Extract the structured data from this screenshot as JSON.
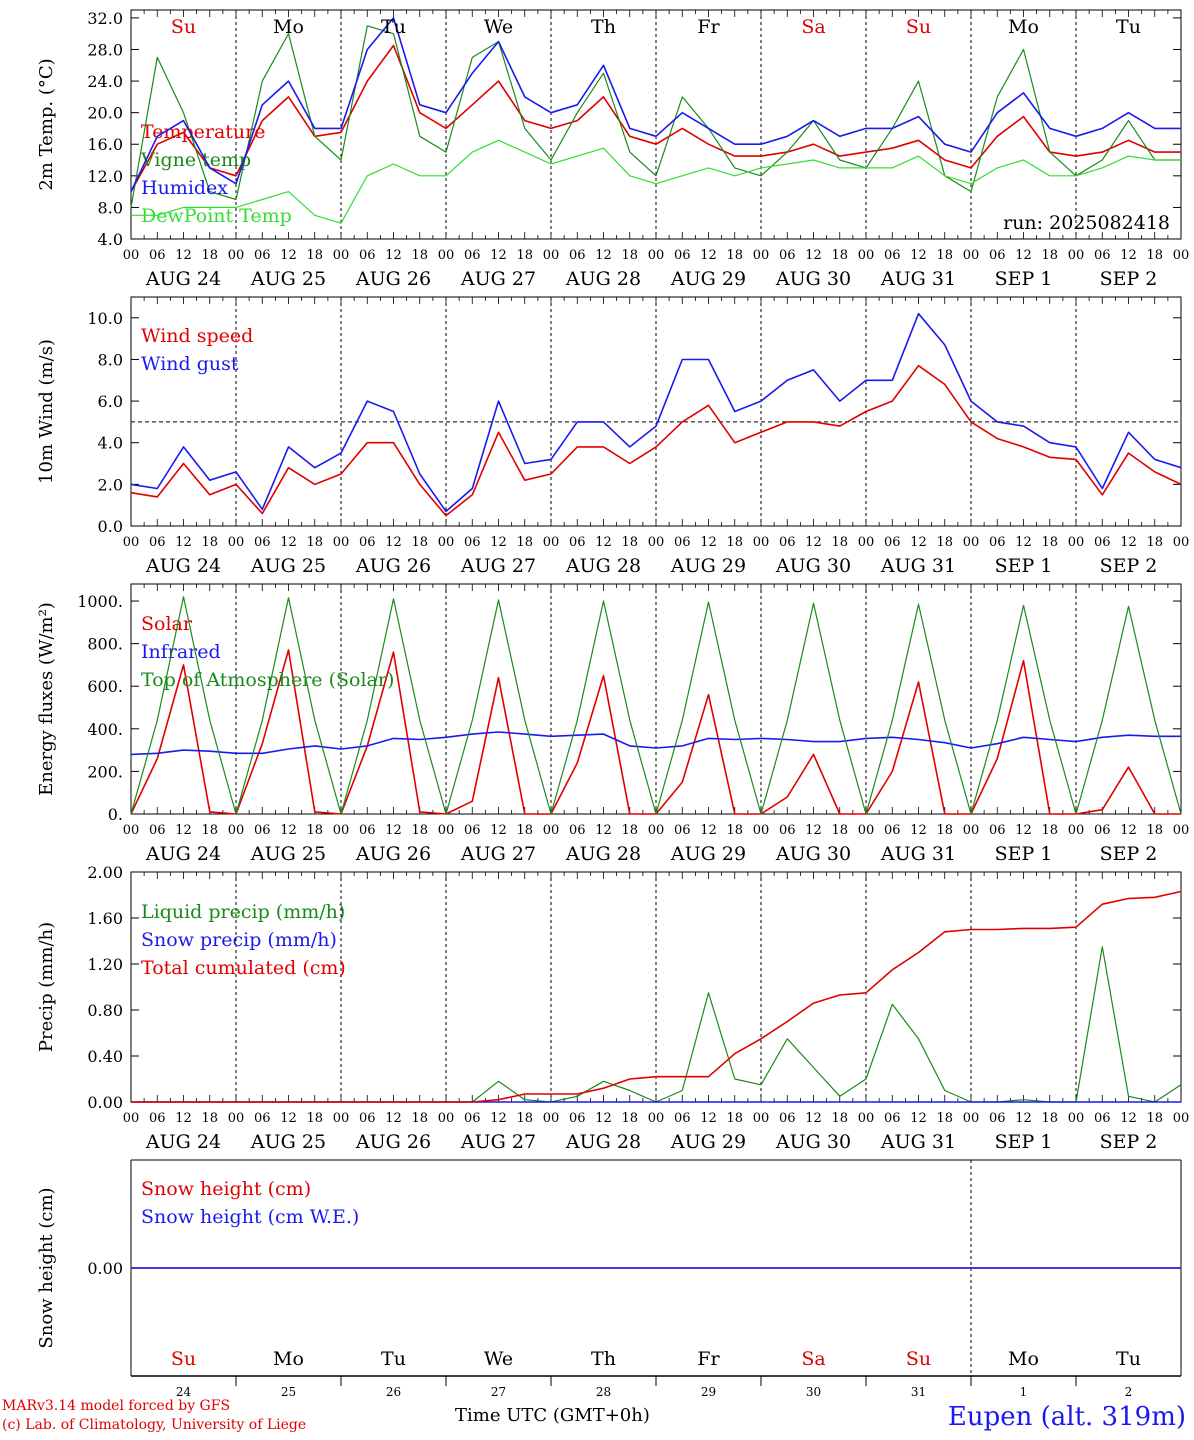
{
  "footer": {
    "model": "MARv3.14 model forced by GFS",
    "credit": "(c) Lab. of Climatology, University of Liege",
    "time_label": "Time UTC (GMT+0h)",
    "location": "Eupen (alt. 319m)"
  },
  "days": [
    {
      "weekday": "Su",
      "date": "AUG 24",
      "num": "24",
      "weekend": true
    },
    {
      "weekday": "Mo",
      "date": "AUG 25",
      "num": "25",
      "weekend": false
    },
    {
      "weekday": "Tu",
      "date": "AUG 26",
      "num": "26",
      "weekend": false
    },
    {
      "weekday": "We",
      "date": "AUG 27",
      "num": "27",
      "weekend": false
    },
    {
      "weekday": "Th",
      "date": "AUG 28",
      "num": "28",
      "weekend": false
    },
    {
      "weekday": "Fr",
      "date": "AUG 29",
      "num": "29",
      "weekend": false
    },
    {
      "weekday": "Sa",
      "date": "AUG 30",
      "num": "30",
      "weekend": true
    },
    {
      "weekday": "Su",
      "date": "AUG 31",
      "num": "31",
      "weekend": true
    },
    {
      "weekday": "Mo",
      "date": "SEP  1",
      "num": "1",
      "weekend": false
    },
    {
      "weekday": "Tu",
      "date": "SEP  2",
      "num": "2",
      "weekend": false
    }
  ],
  "hour_ticks": [
    "00",
    "06",
    "12",
    "18"
  ],
  "colors": {
    "red": "#e00000",
    "green": "#1a8a1a",
    "blue": "#1a1aee",
    "lime": "#33dd33",
    "black": "#000000"
  },
  "chart_data": [
    {
      "type": "line",
      "ylabel": "2m Temp. (°C)",
      "ylim": [
        4,
        33
      ],
      "yticks": [
        4,
        8,
        12,
        16,
        20,
        24,
        28,
        32
      ],
      "ytick_labels": [
        "4.0",
        "8.0",
        "12.0",
        "16.0",
        "20.0",
        "24.0",
        "28.0",
        "32.0"
      ],
      "annotation": "run: 2025082418",
      "x_hours": [
        0,
        6,
        12,
        18,
        24,
        30,
        36,
        42,
        48,
        54,
        60,
        66,
        72,
        78,
        84,
        90,
        96,
        102,
        108,
        114,
        120,
        126,
        132,
        138,
        144,
        150,
        156,
        162,
        168,
        174,
        180,
        186,
        192,
        198,
        204,
        210,
        216,
        222,
        228,
        234,
        240
      ],
      "series": [
        {
          "name": "Temperature",
          "color": "red",
          "values": [
            10,
            16,
            17.5,
            13,
            12,
            19,
            22,
            17,
            17.5,
            24,
            28.5,
            20,
            18,
            21,
            24,
            19,
            18,
            19,
            22,
            17,
            16,
            18,
            16,
            14.5,
            14.5,
            15,
            16,
            14.5,
            15,
            15.5,
            16.5,
            14,
            13,
            17,
            19.5,
            15,
            14.5,
            15,
            16.5,
            15,
            15
          ]
        },
        {
          "name": "Vigne temp",
          "color": "green",
          "values": [
            8,
            27,
            20,
            10,
            9,
            24,
            30,
            17,
            14,
            31,
            30,
            17,
            15,
            27,
            29,
            18,
            14,
            20,
            25,
            15,
            12,
            22,
            18,
            13,
            12,
            15,
            19,
            14,
            13,
            18,
            24,
            12,
            10,
            22,
            28,
            15,
            12,
            14,
            19,
            14,
            14
          ]
        },
        {
          "name": "Humidex",
          "color": "blue",
          "values": [
            10,
            17,
            19,
            13,
            11,
            21,
            24,
            18,
            18,
            28,
            32,
            21,
            20,
            25,
            29,
            22,
            20,
            21,
            26,
            18,
            17,
            20,
            18,
            16,
            16,
            17,
            19,
            17,
            18,
            18,
            19.5,
            16,
            15,
            20,
            22.5,
            18,
            17,
            18,
            20,
            18,
            18
          ]
        },
        {
          "name": "DewPoint Temp",
          "color": "lime",
          "values": [
            7,
            7,
            8,
            8,
            8,
            9,
            10,
            7,
            6,
            12,
            13.5,
            12,
            12,
            15,
            16.5,
            15,
            13.5,
            14.5,
            15.5,
            12,
            11,
            12,
            13,
            12,
            13,
            13.5,
            14,
            13,
            13,
            13,
            14.5,
            12,
            11,
            13,
            14,
            12,
            12,
            13,
            14.5,
            14,
            14
          ]
        }
      ]
    },
    {
      "type": "line",
      "ylabel": "10m Wind (m/s)",
      "ylim": [
        0,
        11
      ],
      "yticks": [
        0,
        2,
        4,
        6,
        8,
        10
      ],
      "ytick_labels": [
        "0.0",
        "2.0",
        "4.0",
        "6.0",
        "8.0",
        "10.0"
      ],
      "reference_line": 5,
      "x_hours": [
        0,
        6,
        12,
        18,
        24,
        30,
        36,
        42,
        48,
        54,
        60,
        66,
        72,
        78,
        84,
        90,
        96,
        102,
        108,
        114,
        120,
        126,
        132,
        138,
        144,
        150,
        156,
        162,
        168,
        174,
        180,
        186,
        192,
        198,
        204,
        210,
        216,
        222,
        228,
        234,
        240
      ],
      "series": [
        {
          "name": "Wind speed",
          "color": "red",
          "values": [
            1.6,
            1.4,
            3,
            1.5,
            2,
            0.6,
            2.8,
            2,
            2.5,
            4,
            4,
            2,
            0.5,
            1.5,
            4.5,
            2.2,
            2.5,
            3.8,
            3.8,
            3,
            3.8,
            5,
            5.8,
            4,
            4.5,
            5,
            5,
            4.8,
            5.5,
            6,
            7.7,
            6.8,
            5,
            4.2,
            3.8,
            3.3,
            3.2,
            1.5,
            3.5,
            2.6,
            2
          ]
        },
        {
          "name": "Wind gust",
          "color": "blue",
          "values": [
            2,
            1.8,
            3.8,
            2.2,
            2.6,
            0.8,
            3.8,
            2.8,
            3.5,
            6,
            5.5,
            2.5,
            0.7,
            1.8,
            6,
            3,
            3.2,
            5,
            5,
            3.8,
            4.8,
            8,
            8,
            5.5,
            6,
            7,
            7.5,
            6,
            7,
            7,
            10.2,
            8.7,
            6,
            5,
            4.8,
            4,
            3.8,
            1.8,
            4.5,
            3.2,
            2.8
          ]
        }
      ]
    },
    {
      "type": "line",
      "ylabel": "Energy fluxes (W/m²)",
      "ylim": [
        0,
        1080
      ],
      "yticks": [
        0,
        200,
        400,
        600,
        800,
        1000
      ],
      "ytick_labels": [
        "0.",
        "200.",
        "400.",
        "600.",
        "800.",
        "1000."
      ],
      "x_hours": [
        0,
        6,
        12,
        18,
        24,
        30,
        36,
        42,
        48,
        54,
        60,
        66,
        72,
        78,
        84,
        90,
        96,
        102,
        108,
        114,
        120,
        126,
        132,
        138,
        144,
        150,
        156,
        162,
        168,
        174,
        180,
        186,
        192,
        198,
        204,
        210,
        216,
        222,
        228,
        234,
        240
      ],
      "series": [
        {
          "name": "Solar",
          "color": "red",
          "values": [
            0,
            260,
            700,
            10,
            0,
            330,
            770,
            10,
            0,
            320,
            760,
            10,
            0,
            60,
            640,
            0,
            0,
            240,
            650,
            0,
            0,
            150,
            560,
            0,
            0,
            80,
            280,
            0,
            0,
            200,
            620,
            0,
            0,
            260,
            720,
            0,
            0,
            20,
            220,
            0,
            0
          ]
        },
        {
          "name": "Infrared",
          "color": "blue",
          "values": [
            280,
            285,
            300,
            295,
            285,
            285,
            305,
            320,
            305,
            320,
            355,
            350,
            360,
            375,
            385,
            375,
            365,
            370,
            375,
            320,
            310,
            320,
            355,
            350,
            355,
            350,
            340,
            340,
            355,
            360,
            350,
            335,
            310,
            330,
            360,
            350,
            340,
            360,
            370,
            365,
            365
          ]
        },
        {
          "name": "Top of Atmosphere (Solar)",
          "color": "green",
          "values": [
            0,
            440,
            1020,
            440,
            0,
            440,
            1015,
            440,
            0,
            440,
            1010,
            440,
            0,
            440,
            1005,
            440,
            0,
            440,
            1000,
            440,
            0,
            440,
            995,
            440,
            0,
            440,
            990,
            440,
            0,
            440,
            985,
            440,
            0,
            440,
            980,
            440,
            0,
            440,
            975,
            440,
            0
          ]
        }
      ]
    },
    {
      "type": "line",
      "ylabel": "Precip (mm/h)",
      "ylim": [
        0,
        2
      ],
      "yticks": [
        0,
        0.4,
        0.8,
        1.2,
        1.6,
        2.0
      ],
      "ytick_labels": [
        "0.00",
        "0.40",
        "0.80",
        "1.20",
        "1.60",
        "2.00"
      ],
      "x_hours": [
        0,
        6,
        12,
        18,
        24,
        30,
        36,
        42,
        48,
        54,
        60,
        66,
        72,
        78,
        84,
        90,
        96,
        102,
        108,
        114,
        120,
        126,
        132,
        138,
        144,
        150,
        156,
        162,
        168,
        174,
        180,
        186,
        192,
        198,
        204,
        210,
        216,
        222,
        228,
        234,
        240
      ],
      "series": [
        {
          "name": "Liquid precip (mm/h)",
          "color": "green",
          "values": [
            0,
            0,
            0,
            0,
            0,
            0,
            0,
            0,
            0,
            0,
            0,
            0,
            0,
            0,
            0.18,
            0.02,
            0,
            0.05,
            0.18,
            0.1,
            0,
            0.1,
            0.95,
            0.2,
            0.15,
            0.55,
            0.3,
            0.05,
            0.2,
            0.85,
            0.55,
            0.1,
            0,
            0,
            0.02,
            0,
            0,
            1.35,
            0.05,
            0,
            0.15
          ]
        },
        {
          "name": "Snow precip (mm/h)",
          "color": "blue",
          "values": [
            0,
            0,
            0,
            0,
            0,
            0,
            0,
            0,
            0,
            0,
            0,
            0,
            0,
            0,
            0,
            0,
            0,
            0,
            0,
            0,
            0,
            0,
            0,
            0,
            0,
            0,
            0,
            0,
            0,
            0,
            0,
            0,
            0,
            0,
            0,
            0,
            0,
            0,
            0,
            0,
            0
          ]
        },
        {
          "name": "Total cumulated (cm)",
          "color": "red",
          "values": [
            0,
            0,
            0,
            0,
            0,
            0,
            0,
            0,
            0,
            0,
            0,
            0,
            0,
            0,
            0.02,
            0.07,
            0.07,
            0.07,
            0.12,
            0.2,
            0.22,
            0.22,
            0.22,
            0.42,
            0.55,
            0.7,
            0.86,
            0.93,
            0.95,
            1.15,
            1.3,
            1.48,
            1.5,
            1.5,
            1.51,
            1.51,
            1.52,
            1.72,
            1.77,
            1.78,
            1.83
          ]
        }
      ]
    },
    {
      "type": "line",
      "ylabel": "Snow height (cm)",
      "ylim": [
        -1,
        1
      ],
      "yticks": [
        0
      ],
      "ytick_labels": [
        "0.00"
      ],
      "x_hours": [
        0,
        240
      ],
      "series": [
        {
          "name": "Snow height (cm)",
          "color": "red",
          "values": [
            0,
            0
          ]
        },
        {
          "name": "Snow height (cm W.E.)",
          "color": "blue",
          "values": [
            0,
            0
          ]
        }
      ]
    }
  ]
}
